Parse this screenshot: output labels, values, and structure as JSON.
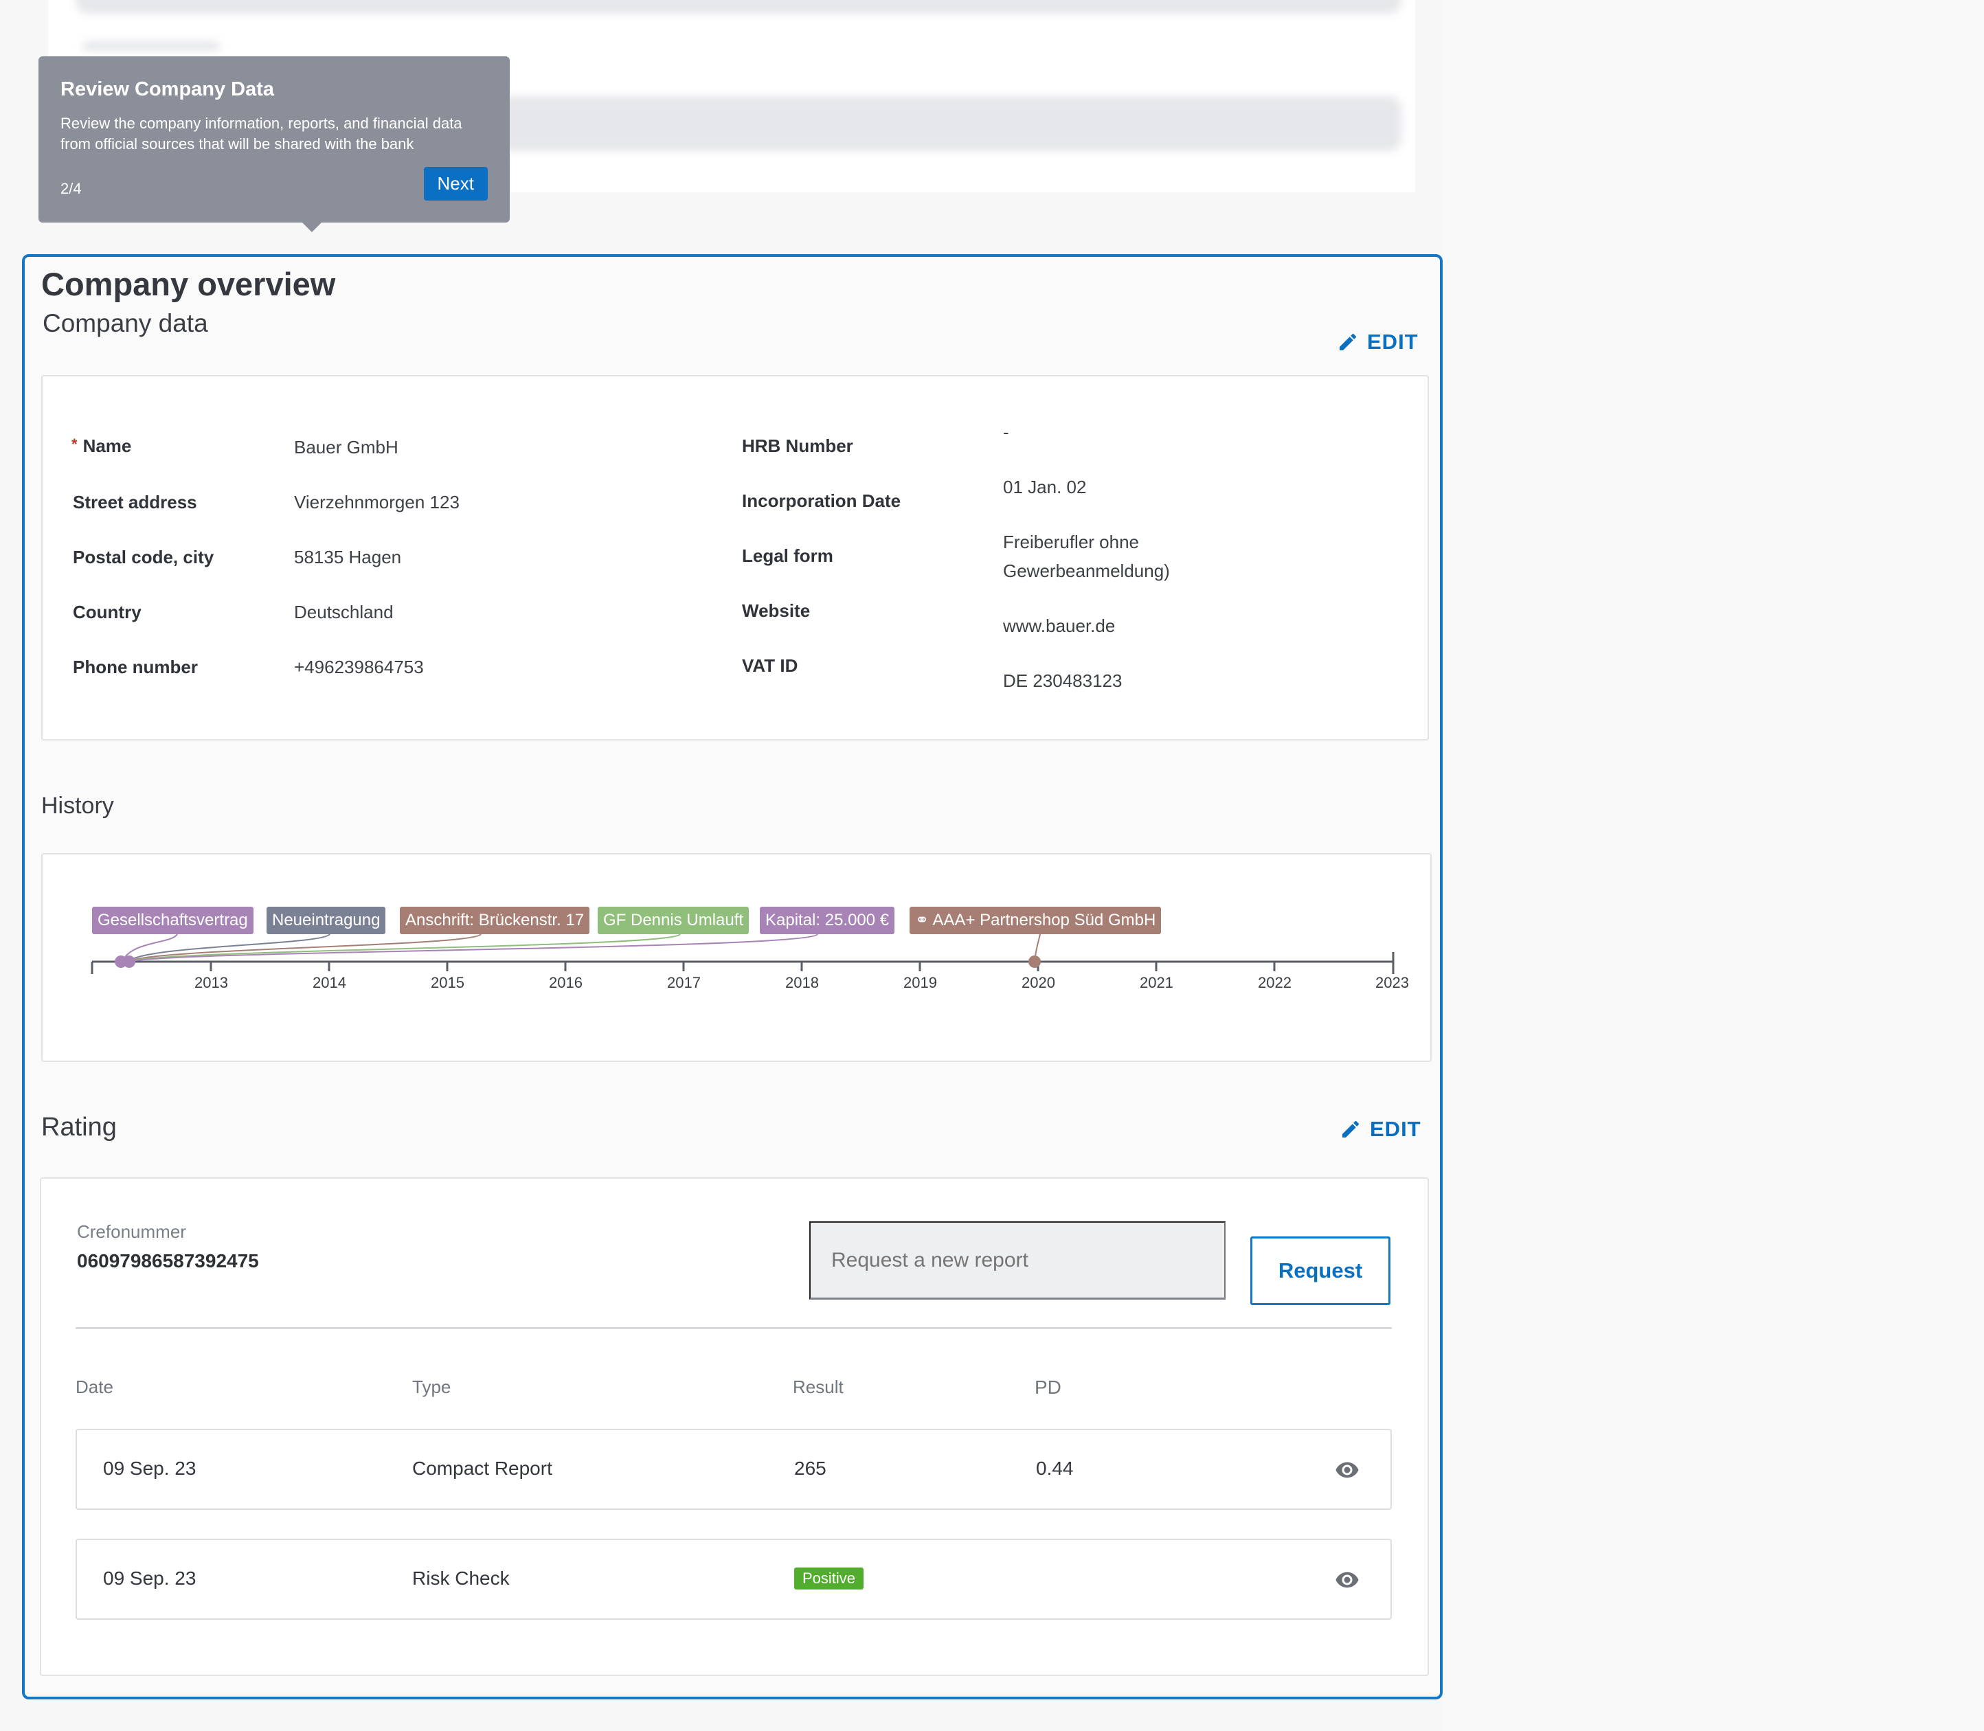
{
  "tour": {
    "title": "Review Company Data",
    "text": "Review the company information, reports, and financial data from official sources that will be shared with the bank",
    "step": "2/4",
    "next_label": "Next"
  },
  "section": {
    "title": "Company overview",
    "company_data": {
      "heading": "Company data",
      "edit_label": "EDIT",
      "required_mark": "*",
      "left": [
        {
          "label": "Name",
          "value": "Bauer GmbH"
        },
        {
          "label": "Street address",
          "value": "Vierzehnmorgen 123"
        },
        {
          "label": "Postal code, city",
          "value": "58135 Hagen"
        },
        {
          "label": "Country",
          "value": "Deutschland"
        },
        {
          "label": "Phone number",
          "value": "+496239864753"
        }
      ],
      "right": [
        {
          "label": "HRB Number",
          "value": "-"
        },
        {
          "label": "Incorporation Date",
          "value": "01 Jan. 02"
        },
        {
          "label": "Legal form",
          "value": "Freiberufler ohne Gewerbeanmeldung)"
        },
        {
          "label": "Website",
          "value": "www.bauer.de"
        },
        {
          "label": "VAT ID",
          "value": "DE 230483123"
        }
      ]
    },
    "history": {
      "heading": "History",
      "events": [
        {
          "label": "Gesellschaftsvertrag",
          "color": "#a783b6"
        },
        {
          "label": "Neueintragung",
          "color": "#7b8195"
        },
        {
          "label": "Anschrift: Brückenstr. 17",
          "color": "#a77e73"
        },
        {
          "label": "GF Dennis Umlauft",
          "color": "#8fbf7b"
        },
        {
          "label": "Kapital: 25.000 €",
          "color": "#a783b6"
        },
        {
          "label": "⚭ AAA+ Partnershop Süd GmbH",
          "color": "#a77e73"
        }
      ],
      "years": [
        "2013",
        "2014",
        "2015",
        "2016",
        "2017",
        "2018",
        "2019",
        "2020",
        "2021",
        "2022",
        "2023"
      ]
    },
    "rating": {
      "heading": "Rating",
      "edit_label": "EDIT",
      "crefo_label": "Crefonummer",
      "crefo_value": "06097986587392475",
      "request_placeholder": "Request a new report",
      "request_button": "Request",
      "columns": [
        "Date",
        "Type",
        "Result",
        "PD"
      ],
      "rows": [
        {
          "date": "09 Sep. 23",
          "type": "Compact Report",
          "result": "265",
          "pd": "0.44"
        },
        {
          "date": "09 Sep. 23",
          "type": "Risk Check",
          "result": "Positive",
          "pd": ""
        }
      ]
    }
  },
  "colors": {
    "accent": "#1677c7",
    "positive": "#52ad2e",
    "tooltip": "#8a8f99"
  }
}
